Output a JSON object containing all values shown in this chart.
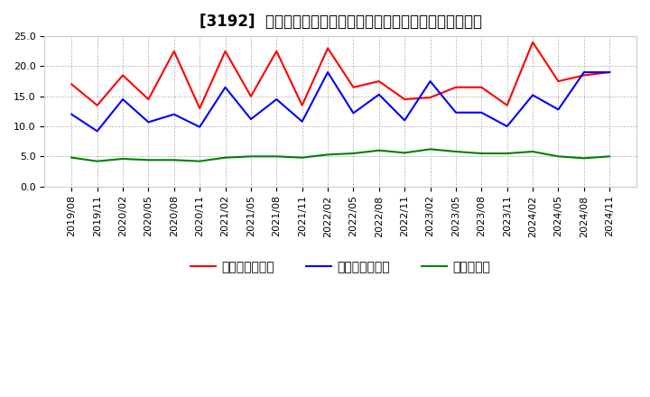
{
  "title": "[3192]  売上債権回転率、買入債務回転率、在庫回転率の推移",
  "x_labels": [
    "2019/08",
    "2019/11",
    "2020/02",
    "2020/05",
    "2020/08",
    "2020/11",
    "2021/02",
    "2021/05",
    "2021/08",
    "2021/11",
    "2022/02",
    "2022/05",
    "2022/08",
    "2022/11",
    "2023/02",
    "2023/05",
    "2023/08",
    "2023/11",
    "2024/02",
    "2024/05",
    "2024/08",
    "2024/11"
  ],
  "売上債権回転率": [
    17.0,
    13.5,
    18.5,
    14.5,
    22.5,
    13.0,
    22.5,
    15.0,
    22.5,
    13.5,
    23.0,
    16.5,
    17.5,
    14.5,
    14.8,
    16.5,
    16.5,
    13.5,
    24.0,
    17.5,
    18.5,
    19.0
  ],
  "買入債務回転率": [
    12.0,
    9.2,
    14.5,
    10.7,
    12.0,
    9.9,
    16.5,
    11.2,
    14.5,
    10.8,
    19.0,
    12.2,
    15.3,
    11.0,
    17.5,
    12.3,
    12.3,
    10.0,
    15.2,
    12.8,
    19.0,
    19.0
  ],
  "在庫回転率": [
    4.8,
    4.2,
    4.6,
    4.4,
    4.4,
    4.2,
    4.8,
    5.0,
    5.0,
    4.8,
    5.3,
    5.5,
    6.0,
    5.6,
    6.2,
    5.8,
    5.5,
    5.5,
    5.8,
    5.0,
    4.7,
    5.0
  ],
  "color_red": "#ff0000",
  "color_blue": "#0000ff",
  "color_green": "#008000",
  "ylim": [
    0.0,
    25.0
  ],
  "yticks": [
    0.0,
    5.0,
    10.0,
    15.0,
    20.0,
    25.0
  ],
  "legend_labels": [
    "売上債権回転率",
    "買入債務回転率",
    "在庫回転率"
  ],
  "bg_color": "#ffffff",
  "plot_bg_color": "#ffffff",
  "grid_color": "#999999",
  "title_fontsize": 12,
  "axis_fontsize": 8,
  "legend_fontsize": 10
}
